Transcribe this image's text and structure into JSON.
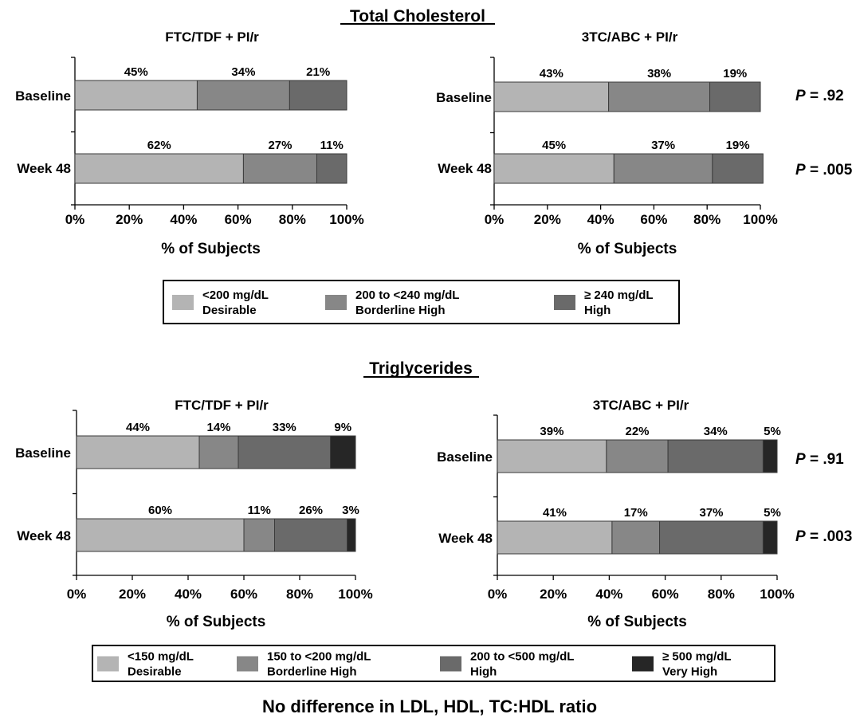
{
  "colors": {
    "c1": "#b4b4b4",
    "c2": "#878787",
    "c3": "#6a6a6a",
    "c4": "#262626",
    "axis": "#000000"
  },
  "sections": {
    "cholesterol_title": "Total Cholesterol",
    "triglycerides_title": "Triglycerides",
    "footer": "No difference in LDL, HDL, TC:HDL ratio"
  },
  "legend_cholesterol": [
    {
      "line1": "<200 mg/dL",
      "line2": "Desirable",
      "color_key": "c1"
    },
    {
      "line1": "200 to <240 mg/dL",
      "line2": "Borderline High",
      "color_key": "c2"
    },
    {
      "line1": "≥ 240 mg/dL",
      "line2": "High",
      "color_key": "c3"
    }
  ],
  "legend_triglycerides": [
    {
      "line1": "<150 mg/dL",
      "line2": "Desirable",
      "color_key": "c1"
    },
    {
      "line1": "150 to <200  mg/dL",
      "line2": "Borderline High",
      "color_key": "c2"
    },
    {
      "line1": "200 to <500 mg/dL",
      "line2": "High",
      "color_key": "c3"
    },
    {
      "line1": "≥ 500 mg/dL",
      "line2": "Very High",
      "color_key": "c4"
    }
  ],
  "chart_data": [
    {
      "type": "bar",
      "stacked": true,
      "orientation": "horizontal",
      "section": "Total Cholesterol",
      "title": "FTC/TDF + PI/r",
      "xlabel": "% of Subjects",
      "xlim": [
        0,
        100
      ],
      "xticks": [
        "0%",
        "20%",
        "40%",
        "60%",
        "80%",
        "100%"
      ],
      "categories": [
        "Baseline",
        "Week 48"
      ],
      "series": [
        {
          "name": "<200 mg/dL Desirable",
          "values": [
            45,
            62
          ],
          "labels": [
            "45%",
            "62%"
          ]
        },
        {
          "name": "200 to <240 mg/dL Borderline High",
          "values": [
            34,
            27
          ],
          "labels": [
            "34%",
            "27%"
          ]
        },
        {
          "name": "≥ 240 mg/dL High",
          "values": [
            21,
            11
          ],
          "labels": [
            "21%",
            "11%"
          ]
        }
      ],
      "p_values": []
    },
    {
      "type": "bar",
      "stacked": true,
      "orientation": "horizontal",
      "section": "Total Cholesterol",
      "title": "3TC/ABC + PI/r",
      "xlabel": "% of Subjects",
      "xlim": [
        0,
        100
      ],
      "xticks": [
        "0%",
        "20%",
        "40%",
        "60%",
        "80%",
        "100%"
      ],
      "categories": [
        "Baseline",
        "Week 48"
      ],
      "series": [
        {
          "name": "<200 mg/dL Desirable",
          "values": [
            43,
            45
          ],
          "labels": [
            "43%",
            "45%"
          ]
        },
        {
          "name": "200 to <240 mg/dL Borderline High",
          "values": [
            38,
            37
          ],
          "labels": [
            "38%",
            "37%"
          ]
        },
        {
          "name": "≥ 240 mg/dL High",
          "values": [
            19,
            19
          ],
          "labels": [
            "19%",
            "19%"
          ]
        }
      ],
      "p_values": [
        ".92",
        ".005"
      ]
    },
    {
      "type": "bar",
      "stacked": true,
      "orientation": "horizontal",
      "section": "Triglycerides",
      "title": "FTC/TDF + PI/r",
      "xlabel": "% of Subjects",
      "xlim": [
        0,
        100
      ],
      "xticks": [
        "0%",
        "20%",
        "40%",
        "60%",
        "80%",
        "100%"
      ],
      "categories": [
        "Baseline",
        "Week 48"
      ],
      "series": [
        {
          "name": "<150 mg/dL Desirable",
          "values": [
            44,
            60
          ],
          "labels": [
            "44%",
            "60%"
          ]
        },
        {
          "name": "150 to <200 mg/dL Borderline High",
          "values": [
            14,
            11
          ],
          "labels": [
            "14%",
            "11%"
          ]
        },
        {
          "name": "200 to <500 mg/dL High",
          "values": [
            33,
            26
          ],
          "labels": [
            "33%",
            "26%"
          ]
        },
        {
          "name": "≥ 500 mg/dL Very High",
          "values": [
            9,
            3
          ],
          "labels": [
            "9%",
            "3%"
          ]
        }
      ],
      "p_values": []
    },
    {
      "type": "bar",
      "stacked": true,
      "orientation": "horizontal",
      "section": "Triglycerides",
      "title": "3TC/ABC + PI/r",
      "xlabel": "% of Subjects",
      "xlim": [
        0,
        100
      ],
      "xticks": [
        "0%",
        "20%",
        "40%",
        "60%",
        "80%",
        "100%"
      ],
      "categories": [
        "Baseline",
        "Week 48"
      ],
      "series": [
        {
          "name": "<150 mg/dL Desirable",
          "values": [
            39,
            41
          ],
          "labels": [
            "39%",
            "41%"
          ]
        },
        {
          "name": "150 to <200 mg/dL Borderline High",
          "values": [
            22,
            17
          ],
          "labels": [
            "22%",
            "17%"
          ]
        },
        {
          "name": "200 to <500 mg/dL High",
          "values": [
            34,
            37
          ],
          "labels": [
            "34%",
            "37%"
          ]
        },
        {
          "name": "≥ 500 mg/dL Very High",
          "values": [
            5,
            5
          ],
          "labels": [
            "5%",
            "5%"
          ]
        }
      ],
      "p_values": [
        ".91",
        ".003"
      ]
    }
  ]
}
